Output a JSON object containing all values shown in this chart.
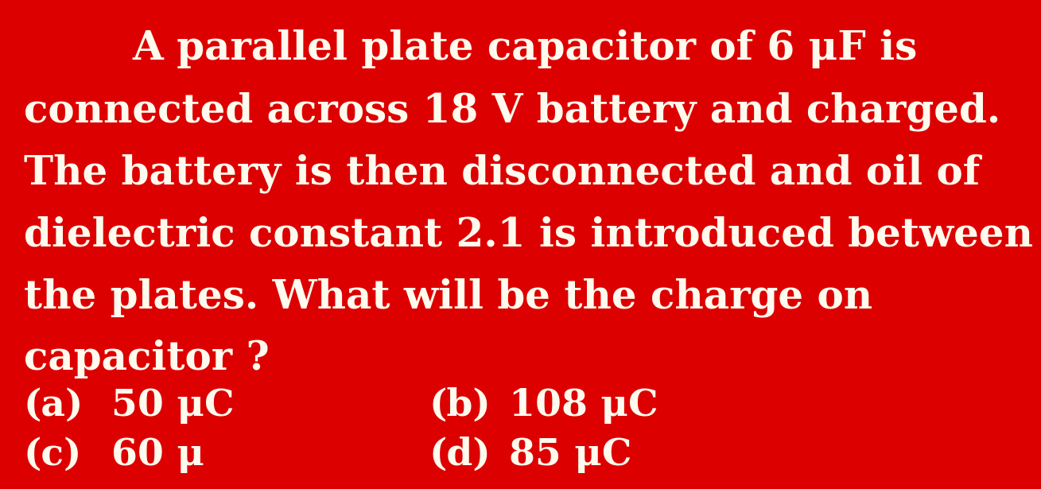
{
  "background_color": "#dd0000",
  "text_color": "#fffaee",
  "line1": "A parallel plate capacitor of 6 μF is",
  "line2": "connected across 18 V battery and charged.",
  "line3": "The battery is then disconnected and oil of",
  "line4": "dielectric constant 2.1 is introduced between",
  "line5": "the plates. What will be the charge on",
  "line6": "capacitor ?",
  "opt_a_label": "(a)",
  "opt_a_value": "50 μC",
  "opt_b_label": "(b)",
  "opt_b_value": "108 μC",
  "opt_c_label": "(c)",
  "opt_c_value": "60 μ",
  "opt_d_label": "(d)",
  "opt_d_value": "85 μC",
  "main_fontsize": 36,
  "option_fontsize": 34,
  "font_family": "serif"
}
